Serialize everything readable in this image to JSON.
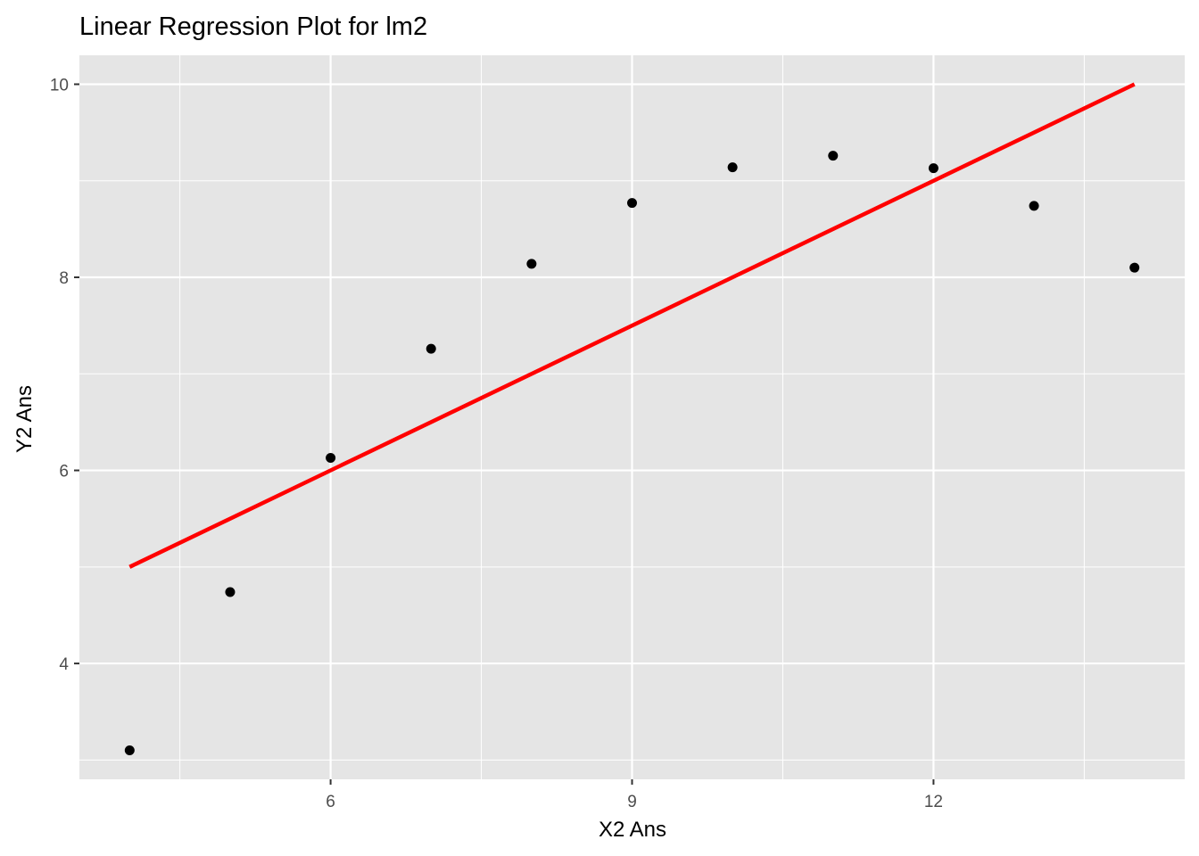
{
  "chart_data": {
    "type": "scatter",
    "title": "Linear Regression Plot for lm2",
    "xlabel": "X2 Ans",
    "ylabel": "Y2 Ans",
    "xlim": [
      3.5,
      14.5
    ],
    "ylim": [
      2.8,
      10.3
    ],
    "x_ticks": [
      6,
      9,
      12
    ],
    "x_tick_labels": [
      "6",
      "9",
      "12"
    ],
    "x_minor": [
      4.5,
      7.5,
      10.5,
      13.5
    ],
    "y_ticks": [
      4,
      6,
      8,
      10
    ],
    "y_tick_labels": [
      "4",
      "6",
      "8",
      "10"
    ],
    "y_minor": [
      3,
      5,
      7,
      9
    ],
    "grid": true,
    "panel_color": "#e5e5e5",
    "grid_color": "#ffffff",
    "point_color": "#000000",
    "line_color": "#ff0000",
    "points": {
      "x": [
        4,
        5,
        6,
        7,
        8,
        9,
        10,
        11,
        12,
        13,
        14
      ],
      "y": [
        3.1,
        4.74,
        6.13,
        7.26,
        8.14,
        8.77,
        9.14,
        9.26,
        9.13,
        8.74,
        8.1
      ]
    },
    "regression_line": {
      "x": [
        4,
        14
      ],
      "y": [
        5.0,
        10.0
      ]
    }
  }
}
